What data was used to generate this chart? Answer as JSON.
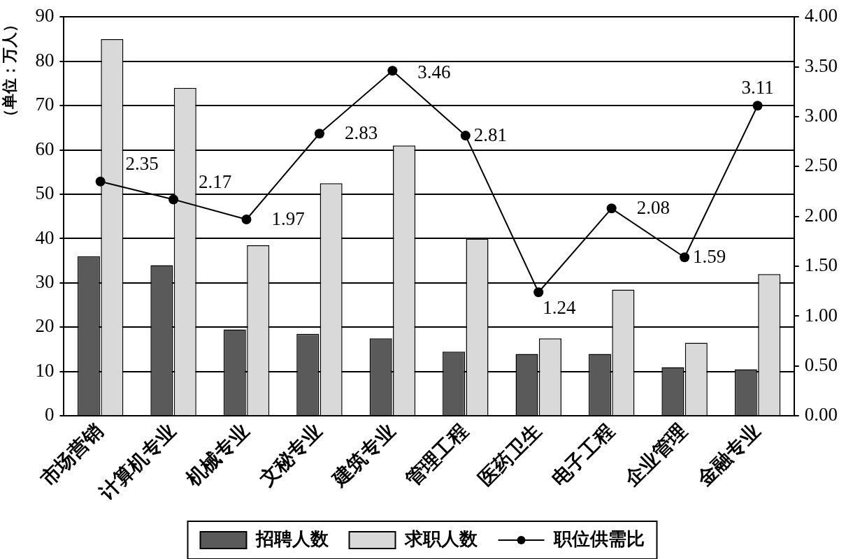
{
  "chart_data": {
    "type": "bar",
    "ylabel": "（单位：万人）",
    "categories": [
      "市场营销",
      "计算机专业",
      "机械专业",
      "文秘专业",
      "建筑专业",
      "管理工程",
      "医药卫生",
      "电子工程",
      "企业管理",
      "金融专业"
    ],
    "series": [
      {
        "name": "招聘人数",
        "color": "#5a5a5a",
        "values": [
          36,
          34,
          19.5,
          18.5,
          17.5,
          14.5,
          14,
          14,
          11,
          10.5
        ]
      },
      {
        "name": "求职人数",
        "color": "#d9d9d9",
        "values": [
          85,
          74,
          38.5,
          52.5,
          61,
          40,
          17.5,
          28.5,
          16.5,
          32
        ]
      },
      {
        "name": "职位供需比",
        "type": "line",
        "axis": "y2",
        "color": "#000000",
        "values": [
          2.35,
          2.17,
          1.97,
          2.83,
          3.46,
          2.81,
          1.24,
          2.08,
          1.59,
          3.11
        ],
        "value_labels": [
          "2.35",
          "2.17",
          "1.97",
          "2.83",
          "3.46",
          "2.81",
          "1.24",
          "2.08",
          "1.59",
          "3.11"
        ]
      }
    ],
    "ylim": [
      0,
      90
    ],
    "yticks": [
      0,
      10,
      20,
      30,
      40,
      50,
      60,
      70,
      80,
      90
    ],
    "y2lim": [
      0,
      4
    ],
    "y2ticks": [
      {
        "value": 0,
        "label": "0.00"
      },
      {
        "value": 0.5,
        "label": "0.50"
      },
      {
        "value": 1,
        "label": "1.00"
      },
      {
        "value": 1.5,
        "label": "1.50"
      },
      {
        "value": 2,
        "label": "2.00"
      },
      {
        "value": 2.5,
        "label": "2.50"
      },
      {
        "value": 3,
        "label": "3.00"
      },
      {
        "value": 3.5,
        "label": "3.50"
      },
      {
        "value": 4,
        "label": "4.00"
      }
    ],
    "grid": "y",
    "legend": "bottom",
    "marker": "circle"
  }
}
